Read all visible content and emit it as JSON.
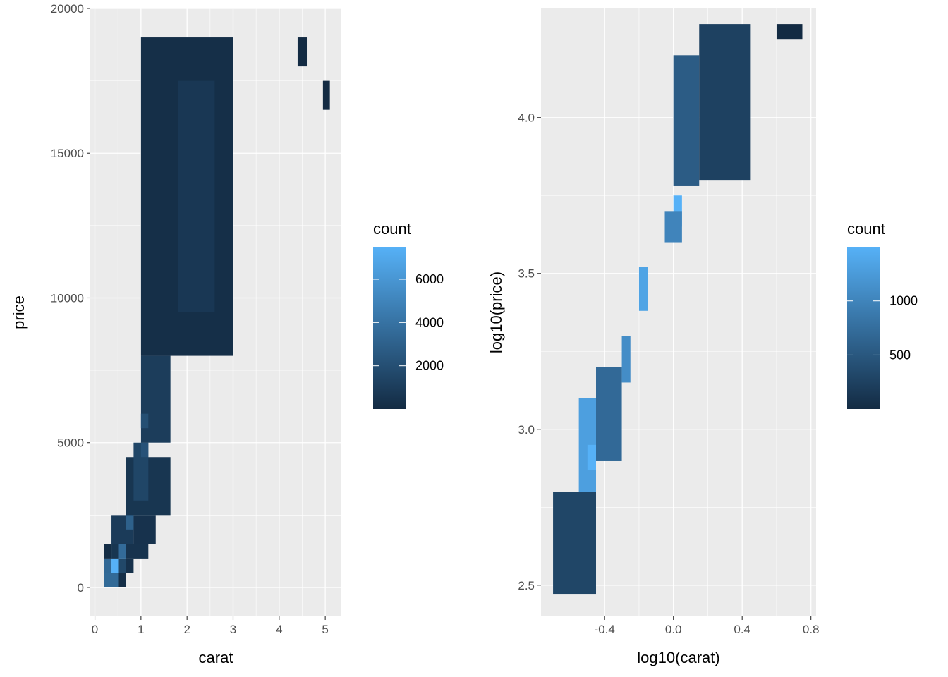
{
  "chart_data": [
    {
      "type": "heatmap",
      "xlabel": "carat",
      "ylabel": "price",
      "xlim": [
        -0.1,
        5.35
      ],
      "ylim": [
        -1000,
        20000
      ],
      "xticks": [
        0,
        1,
        2,
        3,
        4,
        5
      ],
      "yticks": [
        0,
        5000,
        10000,
        15000,
        20000
      ],
      "grid": true,
      "legend": {
        "title": "count",
        "position": "right",
        "range": [
          1,
          7500
        ],
        "ticks": [
          2000,
          4000,
          6000
        ],
        "color_low": "#132B43",
        "color_high": "#56B1F7"
      },
      "bin_width": {
        "x": 0.16,
        "y": 500
      },
      "x_origin": 0.2,
      "y_origin": 0,
      "bins": [
        {
          "x": [
            0.2,
            0.52
          ],
          "y": [
            0,
            500
          ],
          "count": 3500
        },
        {
          "x": [
            0.36,
            0.52
          ],
          "y": [
            500,
            1000
          ],
          "count": 7500
        },
        {
          "x": [
            0.2,
            0.36
          ],
          "y": [
            500,
            1000
          ],
          "count": 3400
        },
        {
          "x": [
            0.52,
            0.68
          ],
          "y": [
            0,
            500
          ],
          "count": 150
        },
        {
          "x": [
            0.52,
            0.68
          ],
          "y": [
            500,
            1000
          ],
          "count": 1600
        },
        {
          "x": [
            0.68,
            0.84
          ],
          "y": [
            500,
            1000
          ],
          "count": 350
        },
        {
          "x": [
            0.52,
            0.68
          ],
          "y": [
            1000,
            1500
          ],
          "count": 3600
        },
        {
          "x": [
            0.36,
            0.52
          ],
          "y": [
            1000,
            1500
          ],
          "count": 600
        },
        {
          "x": [
            0.2,
            0.36
          ],
          "y": [
            1000,
            1500
          ],
          "count": 100
        },
        {
          "x": [
            0.68,
            1.16
          ],
          "y": [
            1000,
            1500
          ],
          "count": 450
        },
        {
          "x": [
            0.36,
            0.84
          ],
          "y": [
            1500,
            2500
          ],
          "count": 900
        },
        {
          "x": [
            0.84,
            1.32
          ],
          "y": [
            1500,
            2500
          ],
          "count": 400
        },
        {
          "x": [
            0.68,
            0.84
          ],
          "y": [
            2000,
            3000
          ],
          "count": 3000
        },
        {
          "x": [
            0.68,
            1.64
          ],
          "y": [
            2500,
            4500
          ],
          "count": 600
        },
        {
          "x": [
            0.84,
            1.16
          ],
          "y": [
            3000,
            5000
          ],
          "count": 1500
        },
        {
          "x": [
            1.0,
            1.16
          ],
          "y": [
            4500,
            5000
          ],
          "count": 2200
        },
        {
          "x": [
            1.0,
            1.64
          ],
          "y": [
            5000,
            8000
          ],
          "count": 1000
        },
        {
          "x": [
            1.0,
            1.16
          ],
          "y": [
            5500,
            6000
          ],
          "count": 2000
        },
        {
          "x": [
            1.0,
            3.0
          ],
          "y": [
            8000,
            19000
          ],
          "count": 200
        },
        {
          "x": [
            1.8,
            2.6
          ],
          "y": [
            9500,
            17500
          ],
          "count": 700
        },
        {
          "x": [
            4.4,
            4.6
          ],
          "y": [
            18000,
            19000
          ],
          "count": 1
        },
        {
          "x": [
            4.95,
            5.1
          ],
          "y": [
            16500,
            17500
          ],
          "count": 1
        }
      ]
    },
    {
      "type": "heatmap",
      "xlabel": "log10(carat)",
      "ylabel": "log10(price)",
      "xlim": [
        -0.77,
        0.83
      ],
      "ylim": [
        2.4,
        4.35
      ],
      "xticks": [
        "-0.4",
        "0.0",
        "0.4",
        "0.8"
      ],
      "yticks": [
        "2.5",
        "3.0",
        "3.5",
        "4.0"
      ],
      "grid": true,
      "legend": {
        "title": "count",
        "position": "right",
        "range": [
          1,
          1500
        ],
        "ticks": [
          500,
          1000
        ],
        "color_low": "#132B43",
        "color_high": "#56B1F7"
      },
      "bin_width": {
        "x": 0.05,
        "y": 0.04
      },
      "x_origin": -0.7,
      "y_origin": 2.47,
      "bins": [
        {
          "x": [
            -0.7,
            -0.45
          ],
          "y": [
            2.47,
            2.8
          ],
          "count": 300
        },
        {
          "x": [
            -0.55,
            -0.45
          ],
          "y": [
            2.8,
            3.1
          ],
          "count": 1300
        },
        {
          "x": [
            -0.5,
            -0.45
          ],
          "y": [
            2.87,
            2.95
          ],
          "count": 1500
        },
        {
          "x": [
            -0.45,
            -0.3
          ],
          "y": [
            2.9,
            3.2
          ],
          "count": 700
        },
        {
          "x": [
            -0.3,
            -0.25
          ],
          "y": [
            3.15,
            3.3
          ],
          "count": 1100
        },
        {
          "x": [
            -0.2,
            -0.15
          ],
          "y": [
            3.38,
            3.52
          ],
          "count": 1350
        },
        {
          "x": [
            0.0,
            0.05
          ],
          "y": [
            3.65,
            3.75
          ],
          "count": 1500
        },
        {
          "x": [
            -0.05,
            0.05
          ],
          "y": [
            3.6,
            3.7
          ],
          "count": 1000
        },
        {
          "x": [
            0.0,
            0.15
          ],
          "y": [
            3.78,
            4.2
          ],
          "count": 550
        },
        {
          "x": [
            0.15,
            0.45
          ],
          "y": [
            3.8,
            4.3
          ],
          "count": 250
        },
        {
          "x": [
            0.6,
            0.75
          ],
          "y": [
            4.25,
            4.3
          ],
          "count": 5
        }
      ]
    }
  ]
}
